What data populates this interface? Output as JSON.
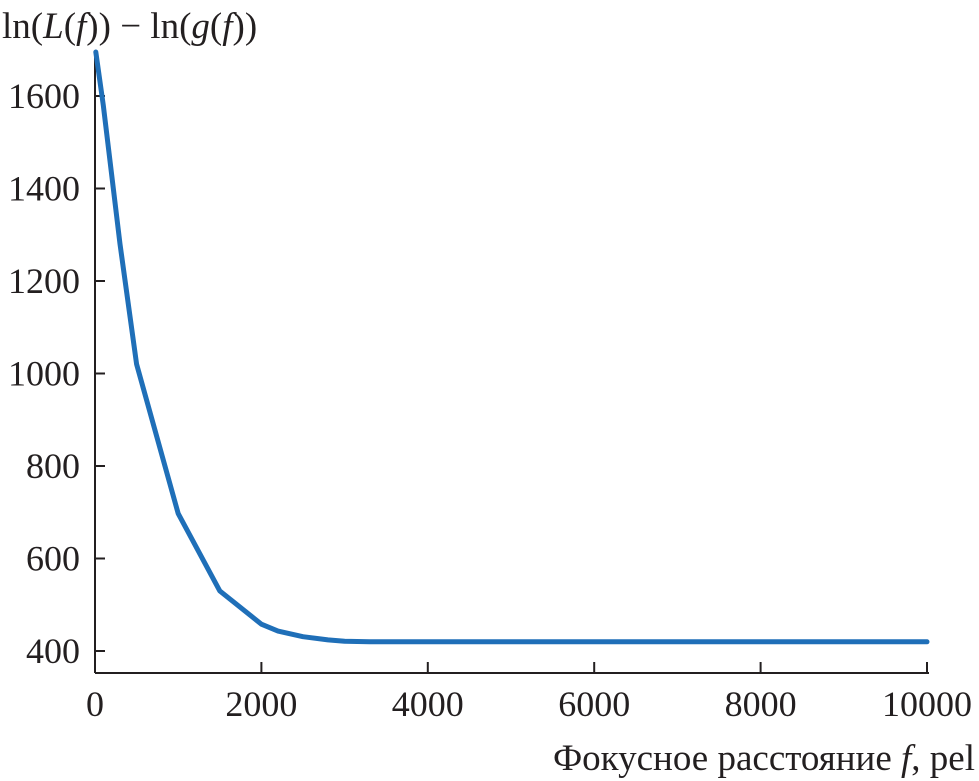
{
  "chart_data": {
    "type": "line",
    "title": "",
    "ylabel": {
      "p1": "ln(",
      "p2": "L",
      "p3": "(",
      "p4": "f",
      "p5": ")) − ln(",
      "p6": "g",
      "p7": "(",
      "p8": "f",
      "p9": "))"
    },
    "xlabel": {
      "prefix": "Фокусное расстояние ",
      "var": "f",
      "suffix": ", pel"
    },
    "xlim": [
      0,
      10000
    ],
    "ylim": [
      380,
      1700
    ],
    "xticks": [
      0,
      2000,
      4000,
      6000,
      8000,
      10000
    ],
    "xtick_labels": [
      "0",
      "2000",
      "4000",
      "6000",
      "8000",
      "10000"
    ],
    "yticks": [
      400,
      600,
      800,
      1000,
      1200,
      1400,
      1600
    ],
    "ytick_labels": [
      "400",
      "600",
      "800",
      "1000",
      "1200",
      "1400",
      "1600"
    ],
    "grid": false,
    "legend": "none",
    "series": [
      {
        "name": "ln(L(f)) − ln(g(f))",
        "color": "#1f6fb8",
        "x": [
          10,
          100,
          300,
          500,
          1000,
          1500,
          2000,
          2200,
          2500,
          2800,
          3000,
          3300,
          4000,
          5000,
          6000,
          7000,
          8000,
          9000,
          10000
        ],
        "y": [
          1700,
          1580,
          1280,
          1020,
          697,
          530,
          458,
          443,
          431,
          424,
          421,
          420,
          420,
          420,
          420,
          420,
          420,
          420,
          420
        ]
      }
    ]
  }
}
